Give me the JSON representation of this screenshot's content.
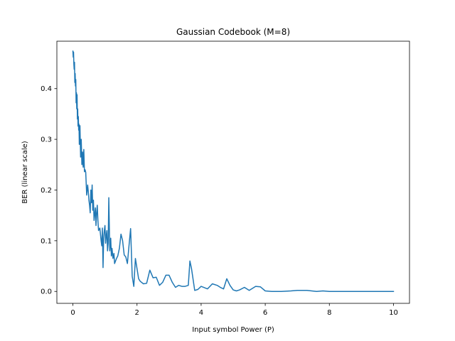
{
  "chart_data": {
    "type": "line",
    "title": "Gaussian Codebook (M=8)",
    "xlabel": "Input symbol Power (P)",
    "ylabel": "BER (linear scale)",
    "xlim": [
      -0.5,
      10.5
    ],
    "ylim": [
      -0.0235,
      0.4935
    ],
    "xticks": [
      0,
      2,
      4,
      6,
      8,
      10
    ],
    "xtick_labels": [
      "0",
      "2",
      "4",
      "6",
      "8",
      "10"
    ],
    "yticks": [
      0.0,
      0.1,
      0.2,
      0.3,
      0.4
    ],
    "ytick_labels": [
      "0.0",
      "0.1",
      "0.2",
      "0.3",
      "0.4"
    ],
    "grid": false,
    "legend": "none",
    "line_color": "#1f77b4",
    "series": [
      {
        "x": [
          0.0,
          0.01,
          0.02,
          0.03,
          0.04,
          0.05,
          0.06,
          0.07,
          0.08,
          0.09,
          0.1,
          0.11,
          0.12,
          0.13,
          0.14,
          0.15,
          0.16,
          0.17,
          0.18,
          0.19,
          0.2,
          0.22,
          0.24,
          0.26,
          0.28,
          0.3,
          0.32,
          0.34,
          0.36,
          0.38,
          0.4,
          0.43,
          0.46,
          0.49,
          0.5,
          0.52,
          0.54,
          0.56,
          0.58,
          0.6,
          0.62,
          0.64,
          0.66,
          0.7,
          0.72,
          0.74,
          0.76,
          0.78,
          0.8,
          0.84,
          0.88,
          0.9,
          0.92,
          0.94,
          0.96,
          0.98,
          1.0,
          1.02,
          1.04,
          1.06,
          1.08,
          1.1,
          1.12,
          1.15,
          1.18,
          1.2,
          1.22,
          1.25,
          1.28,
          1.3,
          1.33,
          1.36,
          1.4,
          1.45,
          1.5,
          1.55,
          1.6,
          1.65,
          1.7,
          1.75,
          1.8,
          1.85,
          1.9,
          1.95,
          2.0,
          2.05,
          2.1,
          2.2,
          2.3,
          2.4,
          2.5,
          2.6,
          2.7,
          2.8,
          2.9,
          3.0,
          3.1,
          3.2,
          3.3,
          3.4,
          3.5,
          3.6,
          3.65,
          3.7,
          3.8,
          3.9,
          4.0,
          4.2,
          4.35,
          4.5,
          4.6,
          4.7,
          4.8,
          4.9,
          5.0,
          5.1,
          5.2,
          5.35,
          5.5,
          5.7,
          5.85,
          6.0,
          6.2,
          6.5,
          6.8,
          7.0,
          7.3,
          7.6,
          7.8,
          8.0,
          8.5,
          9.0,
          9.5,
          10.0
        ],
        "y": [
          0.474,
          0.462,
          0.472,
          0.448,
          0.438,
          0.452,
          0.412,
          0.43,
          0.405,
          0.418,
          0.372,
          0.392,
          0.36,
          0.388,
          0.34,
          0.36,
          0.326,
          0.345,
          0.318,
          0.33,
          0.29,
          0.327,
          0.265,
          0.3,
          0.25,
          0.275,
          0.245,
          0.28,
          0.236,
          0.24,
          0.235,
          0.19,
          0.21,
          0.19,
          0.18,
          0.17,
          0.155,
          0.2,
          0.175,
          0.21,
          0.16,
          0.18,
          0.14,
          0.165,
          0.13,
          0.155,
          0.17,
          0.14,
          0.12,
          0.125,
          0.1,
          0.09,
          0.125,
          0.047,
          0.105,
          0.12,
          0.13,
          0.095,
          0.11,
          0.12,
          0.08,
          0.095,
          0.185,
          0.08,
          0.105,
          0.07,
          0.085,
          0.065,
          0.075,
          0.055,
          0.06,
          0.065,
          0.07,
          0.085,
          0.113,
          0.1,
          0.072,
          0.068,
          0.055,
          0.09,
          0.124,
          0.03,
          0.01,
          0.065,
          0.045,
          0.025,
          0.02,
          0.015,
          0.016,
          0.042,
          0.027,
          0.028,
          0.012,
          0.018,
          0.032,
          0.032,
          0.018,
          0.008,
          0.012,
          0.01,
          0.01,
          0.012,
          0.06,
          0.045,
          0.002,
          0.004,
          0.01,
          0.005,
          0.015,
          0.012,
          0.008,
          0.005,
          0.025,
          0.012,
          0.003,
          0.001,
          0.003,
          0.008,
          0.002,
          0.01,
          0.009,
          0.001,
          0.0,
          0.0,
          0.001,
          0.002,
          0.002,
          0.0,
          0.001,
          0.0,
          0.0,
          0.0,
          0.0,
          0.0
        ]
      }
    ]
  }
}
